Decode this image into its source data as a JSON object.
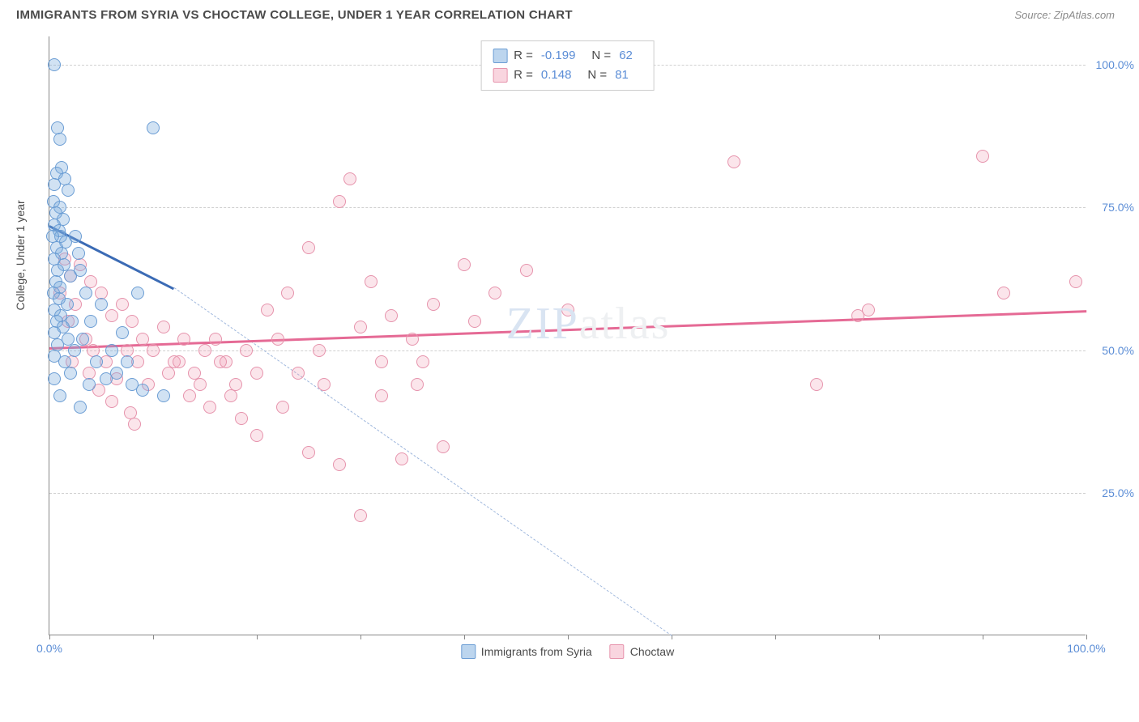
{
  "title": "IMMIGRANTS FROM SYRIA VS CHOCTAW COLLEGE, UNDER 1 YEAR CORRELATION CHART",
  "source": "Source: ZipAtlas.com",
  "chart": {
    "type": "scatter",
    "y_axis_label": "College, Under 1 year",
    "xlim": [
      0,
      100
    ],
    "ylim": [
      0,
      105
    ],
    "x_tick_positions": [
      0,
      10,
      20,
      30,
      40,
      50,
      60,
      70,
      80,
      90,
      100
    ],
    "x_tick_labels": {
      "0": "0.0%",
      "100": "100.0%"
    },
    "y_grid_positions": [
      25,
      50,
      75,
      100
    ],
    "y_tick_labels": {
      "25": "25.0%",
      "50": "50.0%",
      "75": "75.0%",
      "100": "100.0%"
    },
    "background_color": "#ffffff",
    "grid_color": "#d0d0d0",
    "axis_color": "#888888",
    "tick_label_color": "#5b8dd6",
    "tick_label_fontsize": 14,
    "series": {
      "syria": {
        "label": "Immigrants from Syria",
        "point_fill": "rgba(122,172,222,0.35)",
        "point_stroke": "#6b9dd4",
        "trend_color": "#3b6bb5",
        "trend_dashed_color": "#a0b8dd",
        "marker_size": 16,
        "R": "-0.199",
        "N": "62",
        "trend_solid": {
          "x1": 0,
          "y1": 72,
          "x2": 12,
          "y2": 61
        },
        "trend_dashed": {
          "x1": 12,
          "y1": 61,
          "x2": 60,
          "y2": 0
        },
        "points": [
          [
            0.5,
            100
          ],
          [
            0.8,
            89
          ],
          [
            1.0,
            87
          ],
          [
            1.2,
            82
          ],
          [
            0.7,
            81
          ],
          [
            1.5,
            80
          ],
          [
            0.5,
            79
          ],
          [
            1.8,
            78
          ],
          [
            0.4,
            76
          ],
          [
            1.0,
            75
          ],
          [
            0.6,
            74
          ],
          [
            1.3,
            73
          ],
          [
            0.5,
            72
          ],
          [
            0.9,
            71
          ],
          [
            1.1,
            70
          ],
          [
            0.3,
            70
          ],
          [
            1.6,
            69
          ],
          [
            0.7,
            68
          ],
          [
            1.2,
            67
          ],
          [
            0.5,
            66
          ],
          [
            1.4,
            65
          ],
          [
            0.8,
            64
          ],
          [
            2.0,
            63
          ],
          [
            0.6,
            62
          ],
          [
            1.0,
            61
          ],
          [
            2.5,
            70
          ],
          [
            2.8,
            67
          ],
          [
            3.0,
            64
          ],
          [
            0.4,
            60
          ],
          [
            0.9,
            59
          ],
          [
            1.7,
            58
          ],
          [
            0.5,
            57
          ],
          [
            1.1,
            56
          ],
          [
            2.2,
            55
          ],
          [
            0.7,
            55
          ],
          [
            1.3,
            54
          ],
          [
            3.5,
            60
          ],
          [
            0.5,
            53
          ],
          [
            1.8,
            52
          ],
          [
            0.8,
            51
          ],
          [
            2.4,
            50
          ],
          [
            4.0,
            55
          ],
          [
            5.0,
            58
          ],
          [
            0.5,
            49
          ],
          [
            1.5,
            48
          ],
          [
            3.2,
            52
          ],
          [
            6.0,
            50
          ],
          [
            7.0,
            53
          ],
          [
            8.5,
            60
          ],
          [
            4.5,
            48
          ],
          [
            5.5,
            45
          ],
          [
            3.8,
            44
          ],
          [
            6.5,
            46
          ],
          [
            2.0,
            46
          ],
          [
            7.5,
            48
          ],
          [
            0.5,
            45
          ],
          [
            10.0,
            89
          ],
          [
            9.0,
            43
          ],
          [
            8.0,
            44
          ],
          [
            1.0,
            42
          ],
          [
            11.0,
            42
          ],
          [
            3.0,
            40
          ]
        ]
      },
      "choctaw": {
        "label": "Choctaw",
        "point_fill": "rgba(240,150,175,0.25)",
        "point_stroke": "#e693ac",
        "trend_color": "#e56a95",
        "marker_size": 16,
        "R": "0.148",
        "N": "81",
        "trend_solid": {
          "x1": 0,
          "y1": 50.5,
          "x2": 100,
          "y2": 57
        },
        "points": [
          [
            1.5,
            66
          ],
          [
            2.0,
            63
          ],
          [
            3.0,
            65
          ],
          [
            1.0,
            60
          ],
          [
            4.0,
            62
          ],
          [
            2.5,
            58
          ],
          [
            5.0,
            60
          ],
          [
            1.8,
            55
          ],
          [
            6.0,
            56
          ],
          [
            3.5,
            52
          ],
          [
            7.0,
            58
          ],
          [
            4.2,
            50
          ],
          [
            8.0,
            55
          ],
          [
            2.2,
            48
          ],
          [
            9.0,
            52
          ],
          [
            5.5,
            48
          ],
          [
            10.0,
            50
          ],
          [
            3.8,
            46
          ],
          [
            11.0,
            54
          ],
          [
            6.5,
            45
          ],
          [
            12.0,
            48
          ],
          [
            7.5,
            50
          ],
          [
            13.0,
            52
          ],
          [
            4.8,
            43
          ],
          [
            14.0,
            46
          ],
          [
            8.5,
            48
          ],
          [
            15.0,
            50
          ],
          [
            9.5,
            44
          ],
          [
            16.0,
            52
          ],
          [
            6.0,
            41
          ],
          [
            17.0,
            48
          ],
          [
            11.5,
            46
          ],
          [
            18.0,
            44
          ],
          [
            7.8,
            39
          ],
          [
            19.0,
            50
          ],
          [
            12.5,
            48
          ],
          [
            20.0,
            46
          ],
          [
            13.5,
            42
          ],
          [
            21.0,
            57
          ],
          [
            14.5,
            44
          ],
          [
            22.0,
            52
          ],
          [
            8.2,
            37
          ],
          [
            23.0,
            60
          ],
          [
            15.5,
            40
          ],
          [
            24.0,
            46
          ],
          [
            16.5,
            48
          ],
          [
            25.0,
            68
          ],
          [
            17.5,
            42
          ],
          [
            26.0,
            50
          ],
          [
            18.5,
            38
          ],
          [
            28.0,
            76
          ],
          [
            20.0,
            35
          ],
          [
            29.0,
            80
          ],
          [
            22.5,
            40
          ],
          [
            30.0,
            54
          ],
          [
            25.0,
            32
          ],
          [
            31.0,
            62
          ],
          [
            26.5,
            44
          ],
          [
            32.0,
            48
          ],
          [
            28.0,
            30
          ],
          [
            33.0,
            56
          ],
          [
            30.0,
            21
          ],
          [
            35.0,
            52
          ],
          [
            32.0,
            42
          ],
          [
            37.0,
            58
          ],
          [
            34.0,
            31
          ],
          [
            40.0,
            65
          ],
          [
            36.0,
            48
          ],
          [
            43.0,
            60
          ],
          [
            38.0,
            33
          ],
          [
            46.0,
            64
          ],
          [
            41.0,
            55
          ],
          [
            50.0,
            57
          ],
          [
            66.0,
            83
          ],
          [
            74.0,
            44
          ],
          [
            78.0,
            56
          ],
          [
            79.0,
            57
          ],
          [
            90.0,
            84
          ],
          [
            92.0,
            60
          ],
          [
            99.0,
            62
          ],
          [
            35.5,
            44
          ]
        ]
      }
    }
  },
  "legend_top": {
    "border_color": "#cccccc",
    "text_color": "#4a4a4a",
    "value_color": "#5b8dd6",
    "fontsize": 15
  },
  "legend_bottom": {
    "fontsize": 14,
    "text_color": "#4a4a4a"
  },
  "watermark": {
    "text_zip": "ZIP",
    "text_atlas": "atlas",
    "color_zip": "#d9e4f2",
    "color_atlas": "#eef0f2",
    "fontsize": 56
  }
}
